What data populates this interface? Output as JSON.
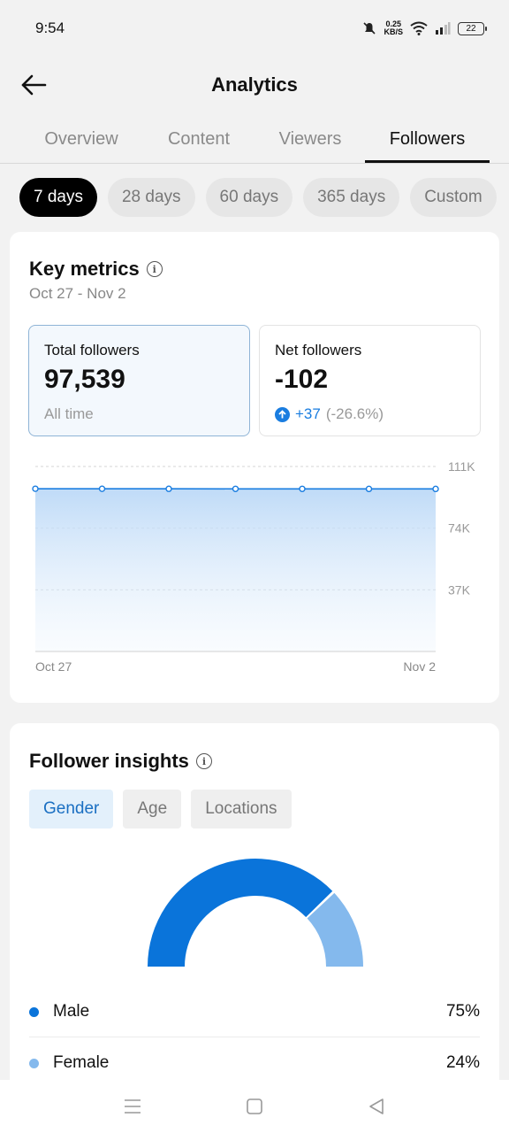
{
  "status_bar": {
    "time": "9:54",
    "speed_value": "0.25",
    "speed_unit": "KB/S",
    "battery": "22"
  },
  "header": {
    "title": "Analytics"
  },
  "tabs": [
    {
      "label": "Overview",
      "active": false
    },
    {
      "label": "Content",
      "active": false
    },
    {
      "label": "Viewers",
      "active": false
    },
    {
      "label": "Followers",
      "active": true
    }
  ],
  "ranges": [
    "7 days",
    "28 days",
    "60 days",
    "365 days",
    "Custom"
  ],
  "key_metrics": {
    "title": "Key metrics",
    "date_range": "Oct 27 - Nov 2",
    "total": {
      "label": "Total followers",
      "value": "97,539",
      "sub": "All time"
    },
    "net": {
      "label": "Net followers",
      "value": "-102",
      "change": "+37",
      "change_pct": "(-26.6%)"
    }
  },
  "chart_data": {
    "type": "area",
    "x": [
      "Oct 27",
      "Oct 28",
      "Oct 29",
      "Oct 30",
      "Oct 31",
      "Nov 1",
      "Nov 2"
    ],
    "series": [
      {
        "values": [
          97641,
          97620,
          97600,
          97580,
          97565,
          97550,
          97539
        ]
      }
    ],
    "ylim": [
      0,
      111000
    ],
    "yticks": [
      "111K",
      "74K",
      "37K"
    ],
    "xtick_labels": [
      "Oct 27",
      "Nov 2"
    ],
    "color": "#1a7de0"
  },
  "insights": {
    "title": "Follower insights",
    "tabs": [
      "Gender",
      "Age",
      "Locations"
    ],
    "legend": [
      {
        "label": "Male",
        "pct": "75%",
        "value": 75,
        "color": "#0a74da"
      },
      {
        "label": "Female",
        "pct": "24%",
        "value": 24,
        "color": "#84b9ed"
      }
    ]
  }
}
